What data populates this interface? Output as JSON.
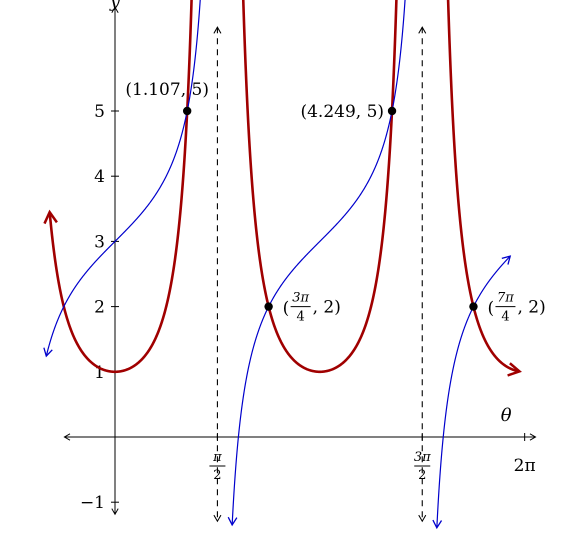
{
  "chart_data": {
    "type": "line",
    "title": "",
    "xlabel": "θ",
    "ylabel": "y",
    "xlim": [
      -0.5,
      6.45
    ],
    "ylim": [
      -1.2,
      6.5
    ],
    "grid": false,
    "x_ticks": [
      {
        "value": 1.5708,
        "num": "π",
        "den": "2"
      },
      {
        "value": 4.7124,
        "num": "3π",
        "den": "2"
      },
      {
        "value": 6.2832,
        "label": "2π"
      }
    ],
    "y_ticks": [
      {
        "value": -1,
        "label": "−1"
      },
      {
        "value": 1,
        "label": "1"
      },
      {
        "value": 2,
        "label": "2"
      },
      {
        "value": 3,
        "label": "3"
      },
      {
        "value": 4,
        "label": "4"
      },
      {
        "value": 5,
        "label": "5"
      }
    ],
    "asymptotes": [
      1.5708,
      4.7124
    ],
    "series": [
      {
        "function": "sec^2(θ)",
        "color": "#a00000",
        "domain": [
          -1.0,
          6.18
        ]
      },
      {
        "function": "tan(θ)+3",
        "color": "#0000cc",
        "domain": [
          -1.05,
          6.05
        ]
      }
    ],
    "points": [
      {
        "x": 1.107,
        "y": 5,
        "label": "(1.107, 5)",
        "label_side": "left-top"
      },
      {
        "x": 2.3562,
        "y": 2,
        "num": "3π",
        "den": "4",
        "tail": ", 2)",
        "label_side": "right"
      },
      {
        "x": 4.249,
        "y": 5,
        "label": "(4.249, 5)",
        "label_side": "left"
      },
      {
        "x": 5.4978,
        "y": 2,
        "num": "7π",
        "den": "4",
        "tail": ", 2)",
        "label_side": "right"
      }
    ]
  }
}
